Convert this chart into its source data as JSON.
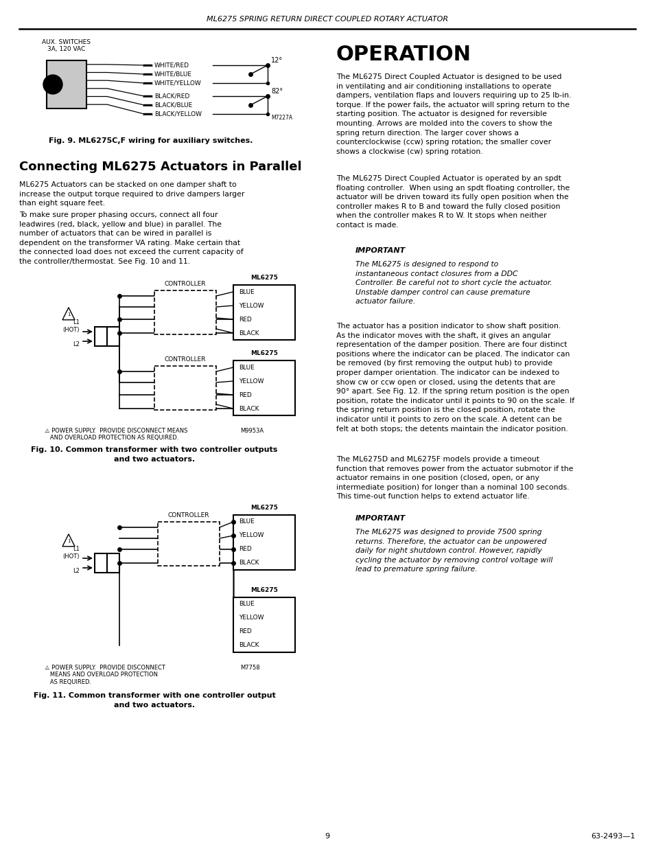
{
  "page_header": "ML6275 SPRING RETURN DIRECT COUPLED ROTARY ACTUATOR",
  "page_number": "9",
  "page_footer_right": "63-2493—1",
  "bg_color": "#ffffff",
  "text_color": "#000000",
  "fig9_caption": "Fig. 9. ML6275C,F wiring for auxiliary switches.",
  "fig10_caption": "Fig. 10. Common transformer with two controller outputs\nand two actuators.",
  "fig11_caption": "Fig. 11. Common transformer with one controller output\nand two actuators.",
  "section_heading": "Connecting ML6275 Actuators in Parallel",
  "para1": "ML6275 Actuators can be stacked on one damper shaft to\nincrease the output torque required to drive dampers larger\nthan eight square feet.",
  "para2": "To make sure proper phasing occurs, connect all four\nleadwires (red, black, yellow and blue) in parallel. The\nnumber of actuators that can be wired in parallel is\ndependent on the transformer VA rating. Make certain that\nthe connected load does not exceed the current capacity of\nthe controller/thermostat. See Fig. 10 and 11.",
  "op_title": "OPERATION",
  "op_para1": "The ML6275 Direct Coupled Actuator is designed to be used\nin ventilating and air conditioning installations to operate\ndampers, ventilation flaps and louvers requiring up to 25 lb-in.\ntorque. If the power fails, the actuator will spring return to the\nstarting position. The actuator is designed for reversible\nmounting. Arrows are molded into the covers to show the\nspring return direction. The larger cover shows a\ncounterclockwise (ccw) spring rotation; the smaller cover\nshows a clockwise (cw) spring rotation.",
  "op_para2": "The ML6275 Direct Coupled Actuator is operated by an spdt\nfloating controller.  When using an spdt floating controller, the\nactuator will be driven toward its fully open position when the\ncontroller makes R to B and toward the fully closed position\nwhen the controller makes R to W. It stops when neither\ncontact is made.",
  "important1_label": "IMPORTANT",
  "important1_text": "The ML6275 is designed to respond to\ninstantaneous contact closures from a DDC\nController. Be careful not to short cycle the actuator.\nUnstable damper control can cause premature\nactuator failure.",
  "op_para3": "The actuator has a position indicator to show shaft position.\nAs the indicator moves with the shaft, it gives an angular\nrepresentation of the damper position. There are four distinct\npositions where the indicator can be placed. The indicator can\nbe removed (by first removing the output hub) to provide\nproper damper orientation. The indicator can be indexed to\nshow cw or ccw open or closed, using the detents that are\n90° apart. See Fig. 12. If the spring return position is the open\nposition, rotate the indicator until it points to 90 on the scale. If\nthe spring return position is the closed position, rotate the\nindicator until it points to zero on the scale. A detent can be\nfelt at both stops; the detents maintain the indicator position.",
  "op_para4": "The ML6275D and ML6275F models provide a timeout\nfunction that removes power from the actuator submotor if the\nactuator remains in one position (closed, open, or any\nintermediate position) for longer than a nominal 100 seconds.\nThis time-out function helps to extend actuator life.",
  "important2_label": "IMPORTANT",
  "important2_text": "The ML6275 was designed to provide 7500 spring\nreturns. Therefore, the actuator can be unpowered\ndaily for night shutdown control. However, rapidly\ncycling the actuator by removing control voltage will\nlead to premature spring failure."
}
